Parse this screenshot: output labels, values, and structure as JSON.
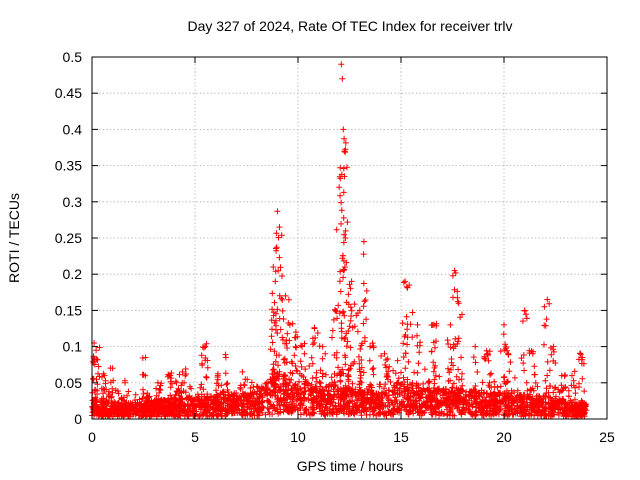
{
  "chart_data": {
    "type": "scatter",
    "title": "Day 327 of 2024, Rate Of TEC Index for receiver trlv",
    "xlabel": "GPS time / hours",
    "ylabel": "ROTI / TECUs",
    "xlim": [
      0,
      25
    ],
    "ylim": [
      0,
      0.5
    ],
    "xticks": [
      0,
      5,
      10,
      15,
      20,
      25
    ],
    "yticks": [
      0,
      0.05,
      0.1,
      0.15,
      0.2,
      0.25,
      0.3,
      0.35,
      0.4,
      0.45,
      0.5
    ],
    "xtick_labels": [
      "0",
      "5",
      "10",
      "15",
      "20",
      "25"
    ],
    "ytick_labels": [
      "0",
      "0.05",
      "0.1",
      "0.15",
      "0.2",
      "0.25",
      "0.3",
      "0.35",
      "0.4",
      "0.45",
      "0.5"
    ],
    "grid": true,
    "marker": "+",
    "series": [
      {
        "name": "ROTI",
        "color": "#ff0000",
        "seed": 327,
        "time_range": [
          0,
          24
        ],
        "n_background_points": 2600,
        "background_profile": [
          [
            0,
            0.015
          ],
          [
            2,
            0.012
          ],
          [
            4,
            0.016
          ],
          [
            6,
            0.018
          ],
          [
            8,
            0.022
          ],
          [
            9,
            0.035
          ],
          [
            10,
            0.03
          ],
          [
            11,
            0.022
          ],
          [
            12,
            0.03
          ],
          [
            13,
            0.022
          ],
          [
            14,
            0.02
          ],
          [
            15,
            0.03
          ],
          [
            16,
            0.025
          ],
          [
            18,
            0.022
          ],
          [
            20,
            0.02
          ],
          [
            22,
            0.018
          ],
          [
            24,
            0.012
          ]
        ],
        "spikes": [
          [
            0.1,
            0.105
          ],
          [
            0.2,
            0.095
          ],
          [
            0.6,
            0.06
          ],
          [
            1.0,
            0.07
          ],
          [
            1.6,
            0.05
          ],
          [
            2.6,
            0.085
          ],
          [
            3.2,
            0.05
          ],
          [
            3.8,
            0.06
          ],
          [
            4.1,
            0.05
          ],
          [
            4.4,
            0.065
          ],
          [
            5.5,
            0.1
          ],
          [
            6.1,
            0.06
          ],
          [
            6.5,
            0.085
          ],
          [
            7.3,
            0.065
          ],
          [
            8.0,
            0.045
          ],
          [
            8.8,
            0.21
          ],
          [
            8.9,
            0.19
          ],
          [
            9.0,
            0.287
          ],
          [
            9.1,
            0.265
          ],
          [
            9.4,
            0.17
          ],
          [
            9.6,
            0.13
          ],
          [
            9.9,
            0.12
          ],
          [
            10.2,
            0.1
          ],
          [
            10.8,
            0.125
          ],
          [
            11.2,
            0.1
          ],
          [
            11.8,
            0.15
          ],
          [
            12.0,
            0.32
          ],
          [
            12.1,
            0.49
          ],
          [
            12.15,
            0.47
          ],
          [
            12.2,
            0.4
          ],
          [
            12.3,
            0.25
          ],
          [
            12.4,
            0.272
          ],
          [
            12.6,
            0.19
          ],
          [
            13.2,
            0.245
          ],
          [
            13.0,
            0.15
          ],
          [
            13.5,
            0.1
          ],
          [
            14.2,
            0.09
          ],
          [
            15.2,
            0.19
          ],
          [
            15.4,
            0.185
          ],
          [
            15.8,
            0.13
          ],
          [
            16.6,
            0.13
          ],
          [
            17.4,
            0.13
          ],
          [
            17.6,
            0.205
          ],
          [
            17.8,
            0.16
          ],
          [
            18.6,
            0.1
          ],
          [
            19.2,
            0.09
          ],
          [
            20.0,
            0.13
          ],
          [
            20.2,
            0.09
          ],
          [
            21.0,
            0.15
          ],
          [
            21.4,
            0.09
          ],
          [
            22.1,
            0.165
          ],
          [
            22.4,
            0.1
          ],
          [
            22.8,
            0.06
          ],
          [
            23.3,
            0.06
          ],
          [
            23.8,
            0.085
          ]
        ]
      }
    ]
  }
}
